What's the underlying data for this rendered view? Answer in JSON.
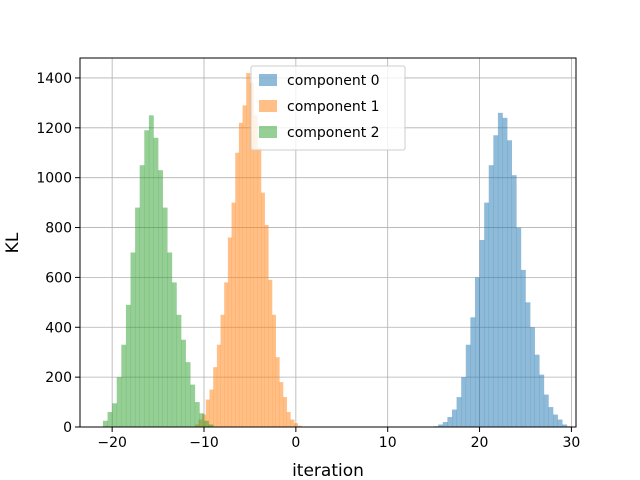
{
  "chart_data": {
    "type": "bar",
    "title": "",
    "xlabel": "iteration",
    "ylabel": "KL",
    "xlim": [
      -23.5,
      30.5
    ],
    "ylim": [
      0,
      1480
    ],
    "xticks": [
      -20,
      -10,
      0,
      10,
      20,
      30
    ],
    "xtick_labels": [
      "−20",
      "−10",
      "0",
      "10",
      "20",
      "30"
    ],
    "yticks": [
      0,
      200,
      400,
      600,
      800,
      1000,
      1200,
      1400
    ],
    "ytick_labels": [
      "0",
      "200",
      "400",
      "600",
      "800",
      "1000",
      "1200",
      "1400"
    ],
    "grid": true,
    "legend_position": "top-center",
    "series": [
      {
        "name": "component 0",
        "color": "#1f77b4",
        "alpha": 0.5,
        "bin_start": 15.0,
        "bin_width": 0.5,
        "counts": [
          3,
          10,
          20,
          40,
          70,
          120,
          200,
          330,
          440,
          600,
          750,
          900,
          1050,
          1170,
          1260,
          1240,
          1150,
          1010,
          800,
          630,
          500,
          400,
          290,
          210,
          130,
          80,
          50,
          30,
          10,
          3
        ]
      },
      {
        "name": "component 1",
        "color": "#ff7f0e",
        "alpha": 0.5,
        "bin_start": -11.0,
        "bin_width": 0.4,
        "counts": [
          10,
          30,
          50,
          110,
          150,
          240,
          330,
          450,
          580,
          760,
          900,
          1100,
          1220,
          1290,
          1420,
          1380,
          1250,
          1120,
          940,
          810,
          590,
          450,
          280,
          180,
          120,
          60,
          30,
          15,
          5
        ]
      },
      {
        "name": "component 2",
        "color": "#2ca02c",
        "alpha": 0.5,
        "bin_start": -21.0,
        "bin_width": 0.5,
        "counts": [
          25,
          60,
          95,
          200,
          330,
          490,
          700,
          880,
          1050,
          1190,
          1250,
          1160,
          1030,
          880,
          700,
          580,
          450,
          350,
          260,
          170,
          100,
          55,
          25,
          10
        ]
      }
    ]
  }
}
